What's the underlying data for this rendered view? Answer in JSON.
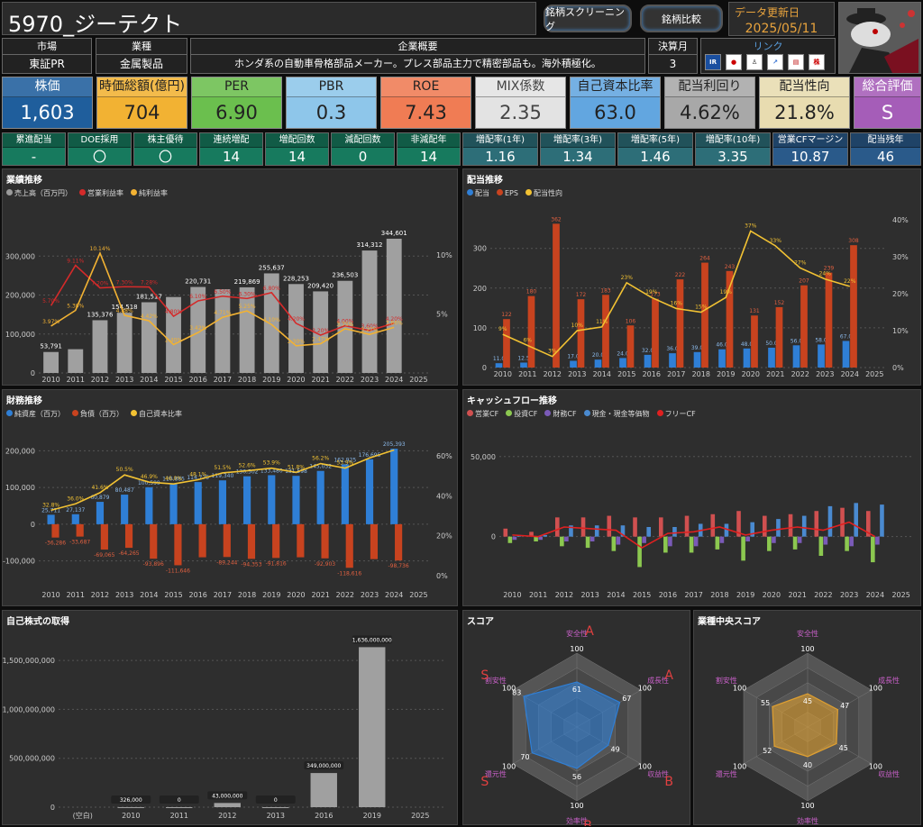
{
  "header": {
    "title": "5970_ジーテクト",
    "btn_screening": "銘柄スクリーニング",
    "btn_compare": "銘柄比較",
    "update_label": "データ更新日",
    "update_date": "2025/05/11"
  },
  "info": {
    "market_h": "市場",
    "market_v": "東証PR",
    "industry_h": "業種",
    "industry_v": "金属製品",
    "summary_h": "企業概要",
    "summary_v": "ホンダ系の自動車骨格部品メーカー。プレス部品主力で精密部品も。海外積極化。",
    "fy_h": "決算月",
    "fy_v": "3",
    "link_h": "リンク"
  },
  "kpis": [
    {
      "label": "株価",
      "value": "1,603",
      "bg": "#1f5e9c",
      "hc": "#1f5e9c",
      "fg": "#fff"
    },
    {
      "label": "時価総額(億円)",
      "value": "704",
      "bg": "#f2b233",
      "hc": "#f2b233",
      "fg": "#222"
    },
    {
      "label": "PER",
      "value": "6.90",
      "bg": "#6bbf4e",
      "hc": "#6bbf4e",
      "fg": "#222"
    },
    {
      "label": "PBR",
      "value": "0.3",
      "bg": "#8ec6ea",
      "hc": "#8ec6ea",
      "fg": "#222"
    },
    {
      "label": "ROE",
      "value": "7.43",
      "bg": "#f07c54",
      "hc": "#f07c54",
      "fg": "#222"
    },
    {
      "label": "MIX係数",
      "value": "2.35",
      "bg": "#e3e3e3",
      "hc": "#e3e3e3",
      "fg": "#444"
    },
    {
      "label": "自己資本比率",
      "value": "63.0",
      "bg": "#62a6e0",
      "hc": "#62a6e0",
      "fg": "#222"
    },
    {
      "label": "配当利回り",
      "value": "4.62%",
      "bg": "#a8a8a8",
      "hc": "#a8a8a8",
      "fg": "#222"
    },
    {
      "label": "配当性向",
      "value": "21.8%",
      "bg": "#e8dcb0",
      "hc": "#e8dcb0",
      "fg": "#222"
    },
    {
      "label": "総合評価",
      "value": "S",
      "bg": "#a55db8",
      "hc": "#a55db8",
      "fg": "#fff"
    }
  ],
  "small": [
    {
      "label": "累進配当",
      "value": "-",
      "bg": "#177a5e"
    },
    {
      "label": "DOE採用",
      "value": "〇",
      "bg": "#177a5e"
    },
    {
      "label": "株主優待",
      "value": "〇",
      "bg": "#177a5e"
    },
    {
      "label": "連続増配",
      "value": "14",
      "bg": "#177a5e"
    },
    {
      "label": "増配回数",
      "value": "14",
      "bg": "#177a5e"
    },
    {
      "label": "減配回数",
      "value": "0",
      "bg": "#177a5e"
    },
    {
      "label": "非減配年",
      "value": "14",
      "bg": "#177a5e"
    },
    {
      "label": "増配率(1年)",
      "value": "1.16",
      "bg": "#2d6e78"
    },
    {
      "label": "増配率(3年)",
      "value": "1.34",
      "bg": "#2d6e78"
    },
    {
      "label": "増配率(5年)",
      "value": "1.46",
      "bg": "#2d6e78"
    },
    {
      "label": "増配率(10年)",
      "value": "3.35",
      "bg": "#2d6e78"
    },
    {
      "label": "営業CFマージン",
      "value": "10.87",
      "bg": "#2a5a8a"
    },
    {
      "label": "配当残年",
      "value": "46",
      "bg": "#2a5a8a"
    }
  ],
  "panels": {
    "perf": {
      "title": "業績推移",
      "legend": [
        "売上高（百万円）",
        "営業利益率",
        "純利益率"
      ]
    },
    "div": {
      "title": "配当推移",
      "legend": [
        "配当",
        "EPS",
        "配当性向"
      ]
    },
    "fin": {
      "title": "財務推移",
      "legend": [
        "純資産（百万）",
        "負債（百万）",
        "自己資本比率"
      ]
    },
    "cf": {
      "title": "キャッシュフロー推移",
      "legend": [
        "営業CF",
        "投資CF",
        "財務CF",
        "現金・現金等価物",
        "フリーCF"
      ]
    },
    "buyback": {
      "title": "自己株式の取得"
    },
    "score": {
      "title": "スコア"
    },
    "indscore": {
      "title": "業種中央スコア"
    }
  },
  "chart_data": [
    {
      "type": "bar",
      "name": "perf",
      "x": [
        "2010",
        "2011",
        "2012",
        "2013",
        "2014",
        "2015",
        "2016",
        "2017",
        "2018",
        "2019",
        "2020",
        "2021",
        "2022",
        "2023",
        "2024",
        "2025"
      ],
      "series": [
        {
          "name": "売上高（百万円）",
          "values": [
            53791,
            61000,
            135376,
            154518,
            181517,
            195000,
            220731,
            215000,
            219869,
            255637,
            228253,
            209420,
            236503,
            314312,
            344601,
            null
          ]
        },
        {
          "name": "営業利益率",
          "values": [
            5.7,
            9.11,
            7.2,
            7.3,
            7.28,
            4.8,
            6.1,
            6.5,
            6.3,
            6.8,
            4.2,
            3.2,
            4.0,
            3.6,
            4.2,
            null
          ]
        },
        {
          "name": "純利益率",
          "values": [
            3.97,
            5.3,
            10.14,
            4.88,
            4.42,
            2.4,
            3.42,
            4.71,
            5.25,
            4.1,
            2.3,
            2.47,
            3.75,
            3.27,
            3.86,
            null
          ]
        }
      ],
      "labels_sales": [
        "53,791",
        "",
        "135,376",
        "154,518",
        "181,517",
        "",
        "220,731",
        "",
        "219,869",
        "255,637",
        "228,253",
        "209,420",
        "236,503",
        "314,312",
        "344,601",
        ""
      ],
      "yticks": [
        "0",
        "100,000",
        "200,000",
        "300,000"
      ],
      "y2ticks": [
        "5%",
        "10%"
      ]
    },
    {
      "type": "bar",
      "name": "div",
      "x": [
        "2010",
        "2011",
        "2012",
        "2013",
        "2014",
        "2015",
        "2016",
        "2017",
        "2018",
        "2019",
        "2020",
        "2021",
        "2022",
        "2023",
        "2024",
        "2025"
      ],
      "series": [
        {
          "name": "配当",
          "values": [
            11.0,
            12.5,
            null,
            17.0,
            20.0,
            24.0,
            32.0,
            36.0,
            39.0,
            46.0,
            48.0,
            50.0,
            56.0,
            58.0,
            67.0,
            null
          ]
        },
        {
          "name": "EPS",
          "values": [
            122,
            180,
            362,
            172,
            183,
            106,
            173,
            222,
            264,
            243,
            131,
            152,
            207,
            239,
            308,
            null
          ]
        },
        {
          "name": "配当性向",
          "values": [
            9,
            6,
            3,
            10,
            11,
            23,
            19,
            16,
            15,
            19,
            37,
            33,
            27,
            24,
            22,
            null
          ]
        }
      ],
      "yticks": [
        "0",
        "100",
        "200",
        "300"
      ],
      "y2ticks": [
        "0%",
        "10%",
        "20%",
        "30%",
        "40%"
      ]
    },
    {
      "type": "bar",
      "name": "fin",
      "x": [
        "2010",
        "2011",
        "2012",
        "2013",
        "2014",
        "2015",
        "2016",
        "2017",
        "2018",
        "2019",
        "2020",
        "2021",
        "2022",
        "2023",
        "2024",
        "2025"
      ],
      "series": [
        {
          "name": "純資産（百万）",
          "values": [
            25711,
            27137,
            60879,
            80487,
            100599,
            110885,
            114775,
            119340,
            130502,
            133480,
            131598,
            145052,
            162925,
            176695,
            205393,
            null
          ]
        },
        {
          "name": "負債（百万）",
          "values": [
            -36286,
            -33687,
            -69065,
            -64265,
            -93896,
            -111646,
            -90000,
            -89244,
            -94353,
            -91816,
            -90000,
            -92903,
            -118616,
            -95000,
            -98736,
            null
          ]
        },
        {
          "name": "自己資本比率",
          "values": [
            32.8,
            36.0,
            41.6,
            50.5,
            46.9,
            46.0,
            48.1,
            51.5,
            52.6,
            53.9,
            51.8,
            56.2,
            53.9,
            59.0,
            63.0,
            null
          ]
        }
      ],
      "labels_pos": [
        "25,711",
        "27,137",
        "60,879",
        "80,487",
        "100,599",
        "110,885",
        "114,775",
        "119,340",
        "130,502",
        "133,480",
        "131,598",
        "145,052",
        "162,925",
        "176,695",
        "205,393",
        ""
      ],
      "labels_neg": [
        "-36,286",
        "-33,687",
        "-69,065",
        "-64,265",
        "-93,896",
        "-111,646",
        "",
        "-89,244",
        "-94,353",
        "-91,816",
        "",
        "-92,903",
        "-118,616",
        "",
        "-98,736",
        ""
      ],
      "labels_pct": [
        "32.8%",
        "36.0%",
        "41.6%",
        "50.5%",
        "46.9%",
        "46.0%",
        "48.1%",
        "51.5%",
        "52.6%",
        "53.9%",
        "51.8%",
        "56.2%",
        "53.9%",
        "",
        "",
        ""
      ],
      "yticks": [
        "-100,000",
        "0",
        "100,000",
        "200,000"
      ],
      "y2ticks": [
        "0%",
        "20%",
        "40%",
        "60%"
      ]
    },
    {
      "type": "bar",
      "name": "cf",
      "x": [
        "2010",
        "2011",
        "2012",
        "2013",
        "2014",
        "2015",
        "2016",
        "2017",
        "2018",
        "2019",
        "2020",
        "2021",
        "2022",
        "2023",
        "2024",
        "2025"
      ],
      "series": [
        {
          "name": "営業CF",
          "values": [
            5000,
            3000,
            12000,
            12000,
            13000,
            12000,
            12000,
            13000,
            14000,
            16000,
            13000,
            14000,
            16000,
            18000,
            16000,
            null
          ]
        },
        {
          "name": "投資CF",
          "values": [
            -4000,
            -3000,
            -6000,
            -7000,
            -9000,
            -19000,
            -10000,
            -10000,
            -8000,
            -15000,
            -9000,
            -8000,
            -12000,
            -9000,
            -16000,
            null
          ]
        },
        {
          "name": "財務CF",
          "values": [
            -2000,
            -2000,
            -3000,
            -3000,
            -5000,
            -4000,
            -6000,
            -6000,
            -4000,
            -3000,
            -4000,
            -4000,
            -5000,
            -6000,
            -5000,
            null
          ]
        },
        {
          "name": "現金・現金等価物",
          "values": [
            1000,
            1000,
            7000,
            7000,
            7000,
            6000,
            6000,
            8000,
            8000,
            9000,
            11000,
            13000,
            19000,
            21000,
            20000,
            null
          ]
        },
        {
          "name": "フリーCF",
          "values": [
            1000,
            0,
            6000,
            5000,
            4000,
            -7000,
            2000,
            3000,
            6000,
            1000,
            4000,
            6000,
            4000,
            9000,
            0,
            null
          ]
        }
      ],
      "yticks": [
        "0",
        "50,000"
      ]
    },
    {
      "type": "bar",
      "name": "buyback",
      "categories": [
        "(空白)",
        "2010",
        "2011",
        "2012",
        "2013",
        "2016",
        "2019",
        "2025"
      ],
      "values": [
        null,
        326000,
        0,
        43000000,
        0,
        349000000,
        1636000000,
        null
      ],
      "labels": [
        "",
        "326,000",
        "0",
        "43,000,000",
        "0",
        "349,000,000",
        "1,636,000,000",
        ""
      ],
      "yticks": [
        "0",
        "500,000,000",
        "1,000,000,000",
        "1,500,000,000"
      ]
    },
    {
      "type": "radar",
      "name": "score",
      "axes": [
        "安全性",
        "成長性",
        "収益性",
        "効率性",
        "還元性",
        "割安性"
      ],
      "values": [
        61,
        67,
        49,
        56,
        70,
        83
      ],
      "grades": [
        "A",
        "A",
        "B",
        "B",
        "S",
        "S"
      ],
      "max": "100"
    },
    {
      "type": "radar",
      "name": "indscore",
      "axes": [
        "安全性",
        "成長性",
        "収益性",
        "効率性",
        "還元性",
        "割安性"
      ],
      "values": [
        45,
        47,
        45,
        40,
        52,
        55
      ],
      "max": "100"
    }
  ]
}
